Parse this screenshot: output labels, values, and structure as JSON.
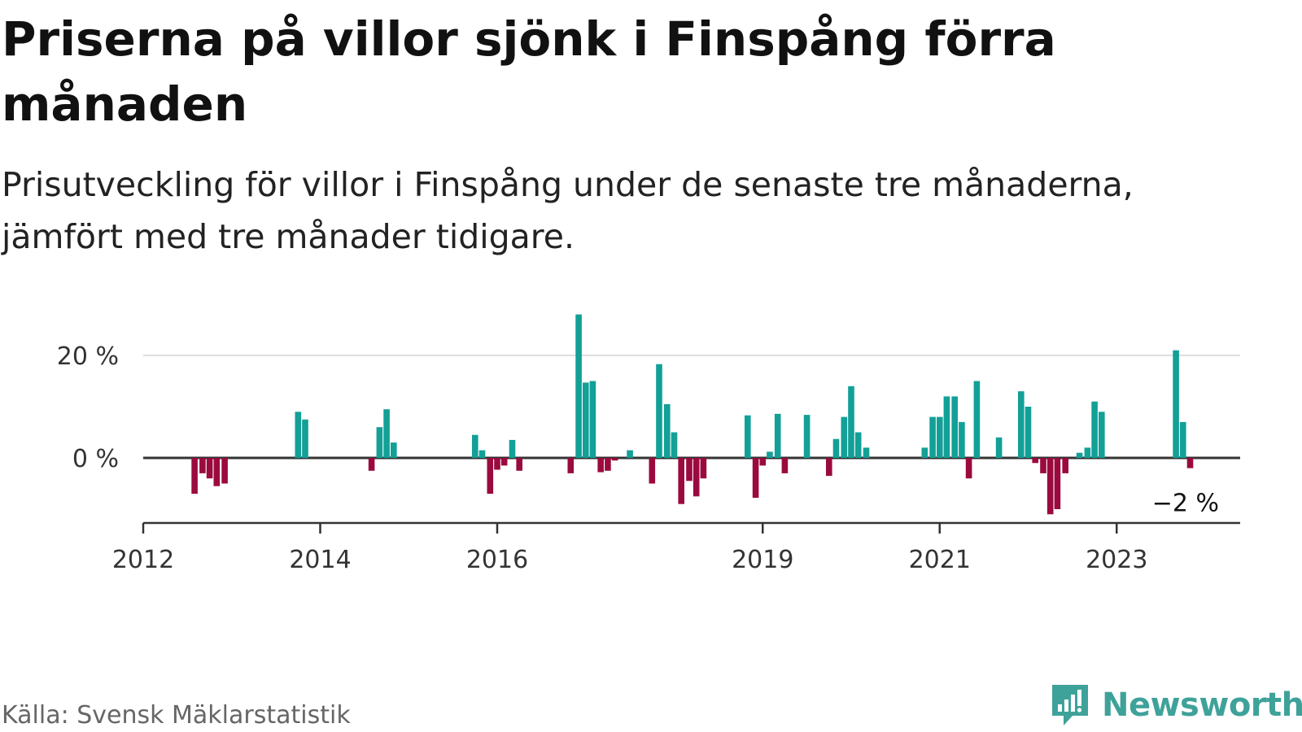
{
  "title": "Priserna på villor sjönk i Finspång förra månaden",
  "subtitle": "Prisutveckling för villor i Finspång under de senaste tre månaderna, jämfört med tre månader tidigare.",
  "source": "Källa: Svensk Mäklarstatistik",
  "brand": "Newsworthy",
  "colors": {
    "positive": "#12a097",
    "negative": "#9b0a3e",
    "gridline": "#dddddd",
    "axis": "#333333",
    "brand": "#3fa29a"
  },
  "chart_data": {
    "type": "bar",
    "title": "",
    "xlabel": "",
    "ylabel": "",
    "ylim": [
      -13,
      30
    ],
    "y_ticks": [
      {
        "value": 0,
        "label": "0 %"
      },
      {
        "value": 20,
        "label": "20 %"
      }
    ],
    "x_ticks": [
      {
        "value": 2012.0,
        "label": "2012"
      },
      {
        "value": 2014.0,
        "label": "2014"
      },
      {
        "value": 2016.0,
        "label": "2016"
      },
      {
        "value": 2019.0,
        "label": "2019"
      },
      {
        "value": 2021.0,
        "label": "2021"
      },
      {
        "value": 2023.0,
        "label": "2023"
      }
    ],
    "annotation": {
      "text": "−2 %",
      "x": 2023.8,
      "y": -2
    },
    "grid": true,
    "series": [
      {
        "x": [
          2012.58,
          2012.67,
          2012.75,
          2012.83,
          2012.92,
          2013.75,
          2013.83,
          2014.58,
          2014.67,
          2014.75,
          2014.83,
          2015.75,
          2015.83,
          2015.92,
          2016.0,
          2016.08,
          2016.17,
          2016.25,
          2016.83,
          2016.92,
          2017.0,
          2017.08,
          2017.17,
          2017.25,
          2017.33,
          2017.5,
          2017.75,
          2017.83,
          2017.92,
          2018.0,
          2018.08,
          2018.17,
          2018.25,
          2018.33,
          2018.83,
          2018.92,
          2019.0,
          2019.08,
          2019.17,
          2019.25,
          2019.5,
          2019.75,
          2019.83,
          2019.92,
          2020.0,
          2020.08,
          2020.17,
          2020.83,
          2020.92,
          2021.0,
          2021.08,
          2021.17,
          2021.25,
          2021.33,
          2021.42,
          2021.67,
          2021.92,
          2022.0,
          2022.08,
          2022.17,
          2022.25,
          2022.33,
          2022.42,
          2022.58,
          2022.67,
          2022.75,
          2022.83,
          2023.67,
          2023.75,
          2023.83
        ],
        "values": [
          -7,
          -3,
          -4,
          -5.5,
          -5,
          9,
          7.5,
          -2.5,
          6,
          9.5,
          3,
          4.5,
          1.5,
          -7,
          -2.3,
          -1.5,
          3.5,
          -2.5,
          -3,
          28,
          14.7,
          15,
          -2.8,
          -2.5,
          -0.5,
          1.5,
          -5,
          18.3,
          10.5,
          5,
          -9,
          -4.5,
          -7.5,
          -4,
          8.3,
          -7.8,
          -1.5,
          1.2,
          8.6,
          -3,
          8.4,
          -3.5,
          3.7,
          8,
          14,
          5,
          2,
          2,
          8,
          8,
          12,
          12,
          7,
          -4,
          15,
          4,
          13,
          10,
          -1,
          -3,
          -11,
          -10,
          -3,
          1,
          2,
          11,
          9,
          21,
          7,
          -2
        ]
      }
    ]
  }
}
